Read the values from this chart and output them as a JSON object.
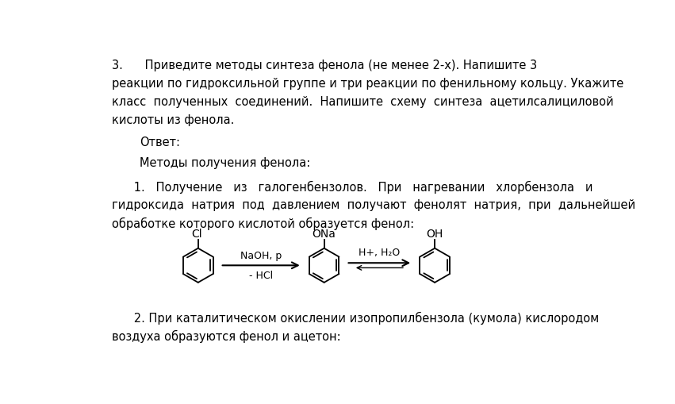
{
  "background_color": "#ffffff",
  "text_color": "#000000",
  "title_line1": "3.      Приведите методы синтеза фенола (не менее 2-х). Напишите 3",
  "body_lines": [
    "реакции по гидроксильной группе и три реакции по фенильному кольцу. Укажите",
    "класс  полученных  соединений.  Напишите  схему  синтеза  ацетилсалициловой",
    "кислоты из фенола."
  ],
  "answer_label": "Ответ:",
  "methods_label": "Методы получения фенола:",
  "method1_line1": "      1.   Получение   из   галогенбензолов.   При   нагревании   хлорбензола   и",
  "method1_line2": "гидроксида  натрия  под  давлением  получают  фенолят  натрия,  при  дальнейшей",
  "method1_line3": "обработке которого кислотой образуется фенол:",
  "method2_line1": "      2. При каталитическом окислении изопропилбензола (кумола) кислородом",
  "method2_line2": "воздуха образуются фенол и ацетон:",
  "font_size_main": 10.5,
  "fig_width": 8.51,
  "fig_height": 5.1
}
